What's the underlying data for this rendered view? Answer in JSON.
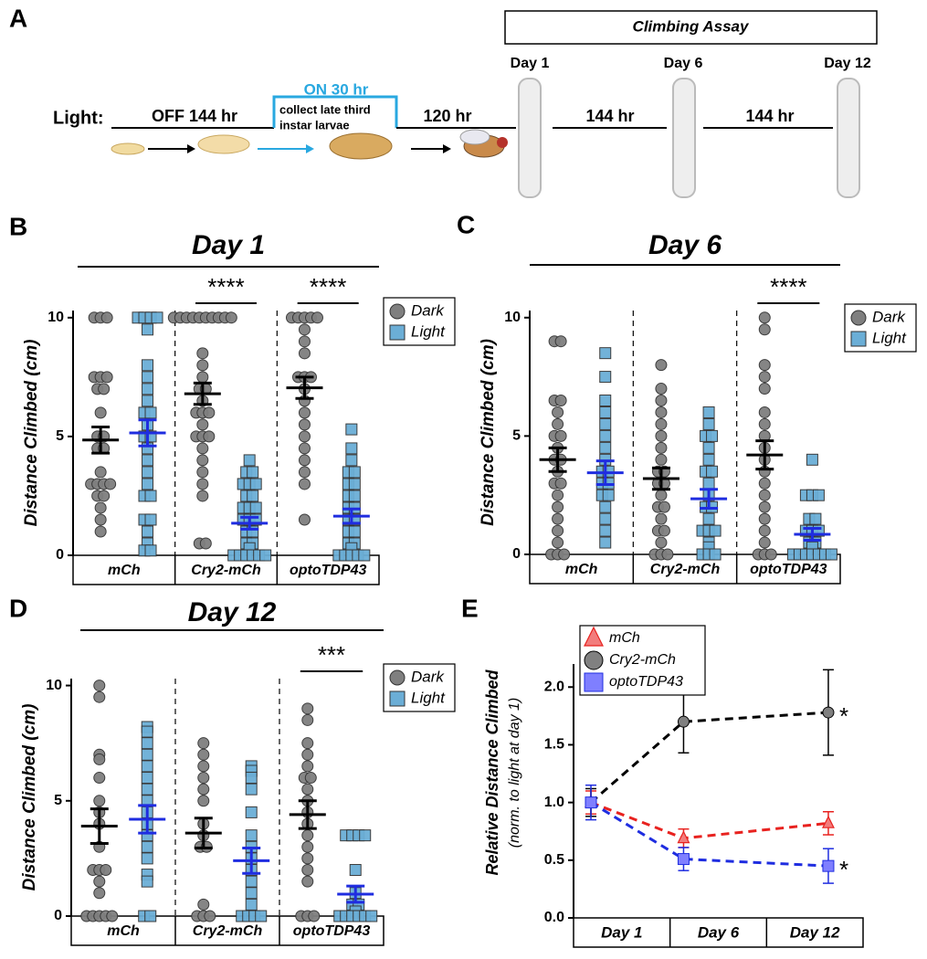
{
  "panel_a": {
    "label": "A",
    "assay": "Climbing Assay",
    "days": [
      "Day 1",
      "Day 6",
      "Day 12"
    ],
    "light_label": "Light:",
    "off": "OFF 144 hr",
    "on": "ON 30 hr",
    "collect": [
      "collect late third",
      "instar larvae"
    ],
    "intervals": [
      "120 hr",
      "144 hr",
      "144 hr"
    ]
  },
  "chart_data": [
    {
      "type": "strip",
      "panel": "B",
      "title": "Day 1",
      "ylabel": "Distance Climbed (cm)",
      "categories": [
        "mCh",
        "Cry2-mCh",
        "optoTDP43"
      ],
      "ylim": [
        0,
        10.3
      ],
      "yticks": [
        0,
        5,
        10
      ],
      "significance": [
        null,
        "****",
        "****"
      ],
      "series": [
        {
          "name": "Dark",
          "color": "#7f7f7f",
          "mean_color": "#000000",
          "marker": "circle",
          "values": [
            [
              10,
              10,
              10,
              7.5,
              7.5,
              7.5,
              7,
              7,
              6,
              5,
              5,
              4.5,
              4.5,
              3.5,
              3,
              3,
              3,
              3,
              2.5,
              2.5,
              2,
              1.5,
              1
            ],
            [
              10,
              10,
              10,
              10,
              10,
              10,
              10,
              10,
              10,
              10,
              8.5,
              8,
              7.5,
              7,
              7,
              6.5,
              6,
              6,
              6,
              5.5,
              5,
              5,
              5,
              4.5,
              4,
              3.5,
              3,
              2.5,
              0.5,
              0.5
            ],
            [
              10,
              10,
              10,
              10,
              10,
              9.5,
              9,
              8.5,
              7.5,
              7.5,
              7.5,
              7,
              6.5,
              6,
              5.5,
              5,
              4.5,
              4,
              3.5,
              3,
              1.5
            ]
          ],
          "mean": [
            4.85,
            6.8,
            7.05
          ],
          "sem": [
            0.55,
            0.45,
            0.45
          ]
        },
        {
          "name": "Light",
          "color": "#6baed6",
          "mean_color": "#1f2de0",
          "marker": "square",
          "values": [
            [
              10,
              10,
              10,
              10,
              9.5,
              8,
              7.5,
              7,
              6.5,
              6,
              6,
              5.5,
              5,
              5,
              4.5,
              4,
              3.5,
              3,
              2.5,
              2.5,
              1.5,
              1.5,
              1,
              0.5,
              0.2,
              0.2
            ],
            [
              4,
              3.5,
              3.5,
              3,
              3,
              3,
              2.5,
              2.5,
              2,
              2,
              2,
              1.5,
              1.5,
              1.5,
              1,
              1,
              0.5,
              0.5,
              0.3,
              0,
              0,
              0,
              0,
              0,
              0
            ],
            [
              5.3,
              4.5,
              4,
              3.5,
              3.5,
              3,
              3,
              2.5,
              2.5,
              2,
              2,
              1.5,
              1.5,
              1,
              1,
              0.5,
              0.5,
              0.3,
              0,
              0,
              0,
              0,
              0
            ]
          ],
          "mean": [
            5.15,
            1.35,
            1.65
          ],
          "sem": [
            0.55,
            0.25,
            0.3
          ]
        }
      ]
    },
    {
      "type": "strip",
      "panel": "C",
      "title": "Day 6",
      "ylabel": "Distance Climbed (cm)",
      "categories": [
        "mCh",
        "Cry2-mCh",
        "optoTDP43"
      ],
      "ylim": [
        0,
        10.3
      ],
      "yticks": [
        0,
        5,
        10
      ],
      "significance": [
        null,
        null,
        "****"
      ],
      "series": [
        {
          "name": "Dark",
          "color": "#7f7f7f",
          "mean_color": "#000000",
          "marker": "circle",
          "values": [
            [
              9,
              9,
              6.5,
              6.5,
              6,
              5.5,
              5,
              5,
              4.5,
              4,
              4,
              3.5,
              3,
              3,
              2.5,
              2,
              1.5,
              1,
              0.5,
              0,
              0,
              0
            ],
            [
              8,
              7,
              6.5,
              6,
              5.5,
              5,
              4.5,
              4,
              3.5,
              3.5,
              3,
              3,
              2.5,
              2,
              2,
              1.5,
              1,
              1,
              0.5,
              0,
              0,
              0
            ],
            [
              10,
              9.5,
              8,
              7.5,
              7,
              6,
              5.5,
              5,
              4.5,
              4,
              3.5,
              3,
              2.5,
              2,
              1.5,
              1,
              0.5,
              0,
              0,
              0
            ]
          ],
          "mean": [
            4.0,
            3.2,
            4.2
          ],
          "sem": [
            0.5,
            0.45,
            0.6
          ]
        },
        {
          "name": "Light",
          "color": "#6baed6",
          "mean_color": "#1f2de0",
          "marker": "square",
          "values": [
            [
              8.5,
              7.5,
              6.5,
              6,
              5.5,
              5,
              4.5,
              4,
              3.5,
              3.5,
              3,
              3,
              2.5,
              2.5,
              2,
              1.5,
              1,
              0.5
            ],
            [
              6,
              5.5,
              5,
              5,
              4.5,
              4,
              3.5,
              3.5,
              3,
              2.5,
              2,
              2,
              1.5,
              1,
              1,
              1,
              0.5,
              0.3,
              0,
              0,
              0
            ],
            [
              4,
              2.5,
              2.5,
              2.5,
              1.5,
              1.5,
              1,
              1,
              1,
              0.5,
              0.5,
              0.3,
              0,
              0,
              0,
              0,
              0,
              0,
              0
            ]
          ],
          "mean": [
            3.45,
            2.35,
            0.85
          ],
          "sem": [
            0.5,
            0.4,
            0.25
          ]
        }
      ]
    },
    {
      "type": "strip",
      "panel": "D",
      "title": "Day 12",
      "ylabel": "Distance Climbed (cm)",
      "categories": [
        "mCh",
        "Cry2-mCh",
        "optoTDP43"
      ],
      "ylim": [
        0,
        10.3
      ],
      "yticks": [
        0,
        5,
        10
      ],
      "significance": [
        null,
        null,
        "***"
      ],
      "series": [
        {
          "name": "Dark",
          "color": "#7f7f7f",
          "mean_color": "#000000",
          "marker": "circle",
          "values": [
            [
              10,
              9.5,
              7,
              6.8,
              6,
              5,
              4.5,
              4,
              3,
              2,
              2,
              2,
              1.5,
              1,
              0,
              0,
              0,
              0,
              0
            ],
            [
              7.5,
              7,
              6.5,
              6,
              5.5,
              5,
              4,
              3.5,
              3,
              3,
              0.5,
              0,
              0,
              0
            ],
            [
              9,
              8.5,
              7.5,
              7,
              6.5,
              6,
              6,
              5.5,
              5,
              4.5,
              4,
              3.5,
              3,
              2.5,
              2,
              1.5,
              0,
              0,
              0
            ]
          ],
          "mean": [
            3.9,
            3.6,
            4.4
          ],
          "sem": [
            0.75,
            0.65,
            0.6
          ]
        },
        {
          "name": "Light",
          "color": "#6baed6",
          "mean_color": "#1f2de0",
          "marker": "square",
          "values": [
            [
              8.2,
              8,
              7.5,
              7,
              6.5,
              6,
              5.5,
              5,
              4.5,
              4,
              3.5,
              3,
              2.5,
              1.8,
              1.5,
              0,
              0
            ],
            [
              6.5,
              6.3,
              6,
              5.5,
              4.5,
              3.5,
              3,
              2.5,
              2,
              1.5,
              1,
              0.5,
              0,
              0,
              0,
              0
            ],
            [
              3.5,
              3.5,
              3.5,
              3.5,
              2,
              1,
              0.5,
              0.5,
              0.2,
              0,
              0,
              0,
              0,
              0,
              0
            ]
          ],
          "mean": [
            4.2,
            2.4,
            0.95
          ],
          "sem": [
            0.6,
            0.55,
            0.35
          ]
        }
      ]
    },
    {
      "type": "line",
      "panel": "E",
      "ylabel": "Relative Distance Climbed",
      "ylabel2": "(norm. to light at day 1)",
      "categories": [
        "Day 1",
        "Day 6",
        "Day 12"
      ],
      "ylim": [
        0,
        2.2
      ],
      "yticks": [
        {
          "value": 0,
          "label": "0.0"
        },
        {
          "value": 0.5,
          "label": "0.5"
        },
        {
          "value": 1,
          "label": "1.0"
        },
        {
          "value": 1.5,
          "label": "1.5"
        },
        {
          "value": 2,
          "label": "2.0"
        }
      ],
      "series": [
        {
          "name": "mCh",
          "color": "#e8221f",
          "fill": "#f27c7c",
          "marker": "triangle",
          "values": [
            1,
            0.69,
            0.82
          ],
          "errors": [
            0.1,
            0.08,
            0.1
          ]
        },
        {
          "name": "Cry2-mCh",
          "color": "#000000",
          "fill": "#808080",
          "marker": "circle",
          "values": [
            1,
            1.7,
            1.78
          ],
          "errors": [
            0.12,
            0.27,
            0.37
          ],
          "annotation": "*"
        },
        {
          "name": "optoTDP43",
          "color": "#1f2de0",
          "fill": "#7f7fff",
          "marker": "square",
          "values": [
            1,
            0.51,
            0.45
          ],
          "errors": [
            0.15,
            0.1,
            0.15
          ],
          "annotation": "*"
        }
      ]
    }
  ]
}
